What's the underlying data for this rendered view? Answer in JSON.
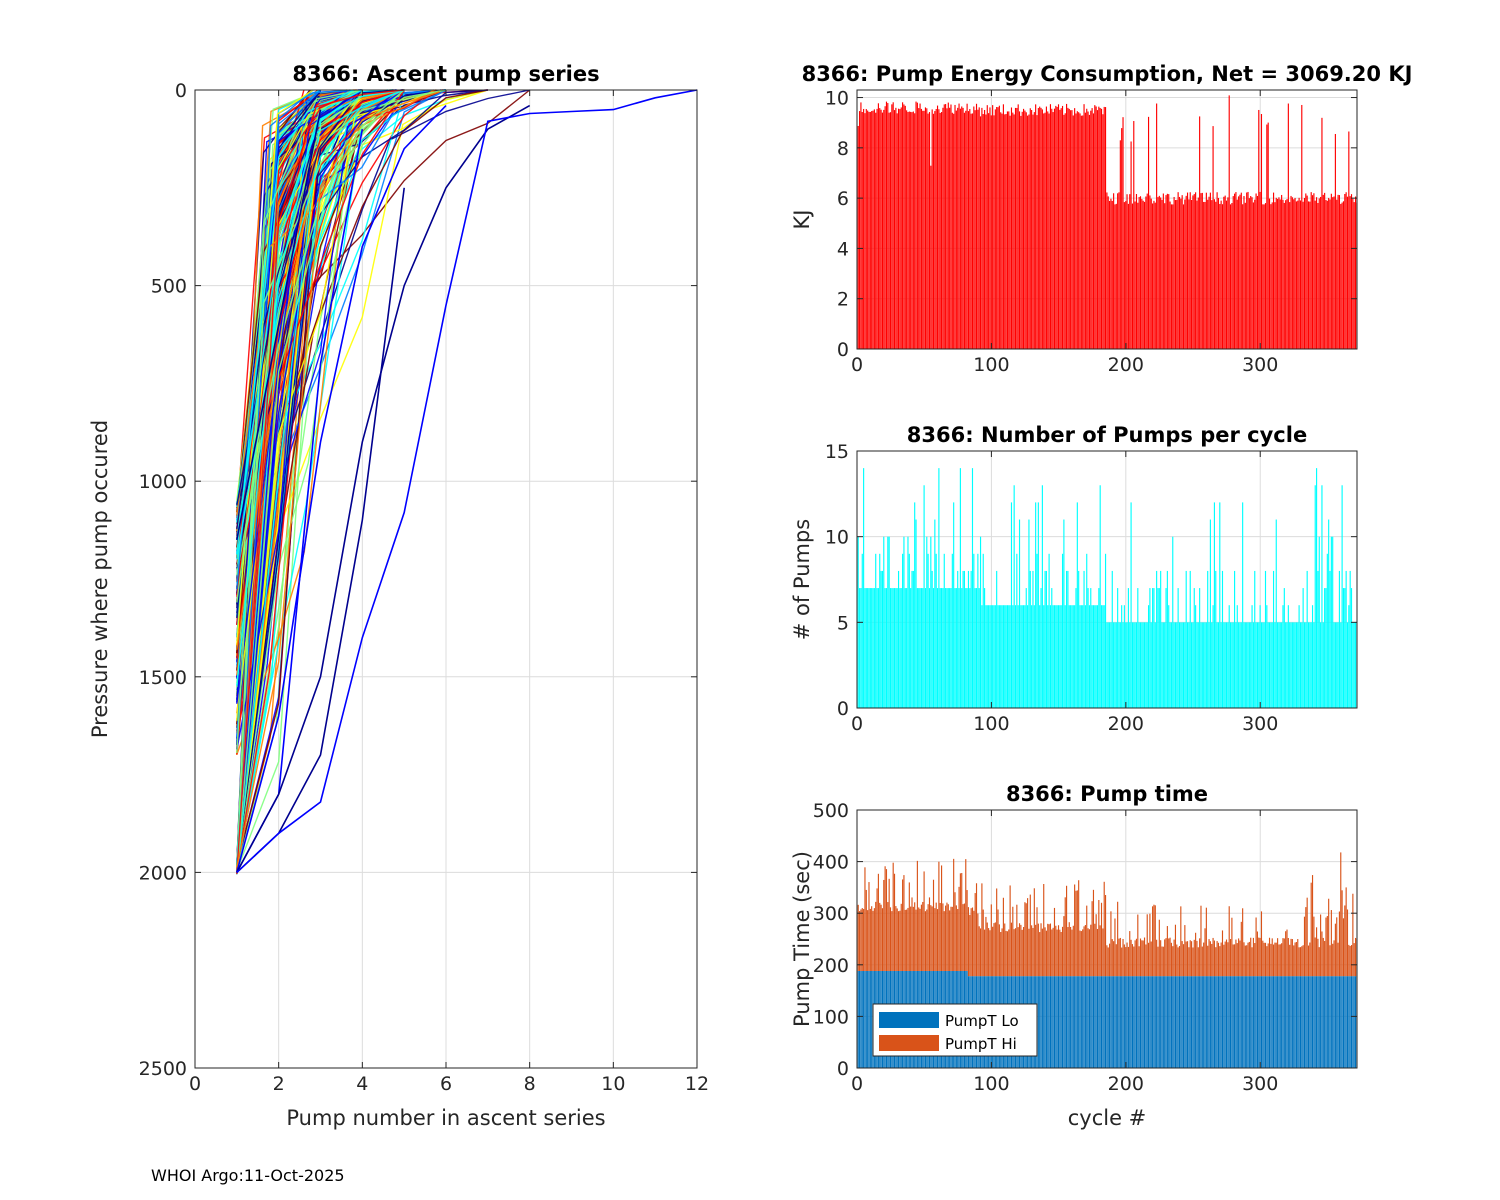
{
  "float_id": "8366",
  "footer": "WHOI Argo:11-Oct-2025",
  "chart_data": [
    {
      "type": "line",
      "title": "8366: Ascent pump series",
      "xlabel": "Pump number in ascent series",
      "ylabel": "Pressure where pump occured",
      "xlim": [
        0,
        12
      ],
      "ylim": [
        0,
        2500
      ],
      "y_reversed": true,
      "xticks": [
        0,
        2,
        4,
        6,
        8,
        10,
        12
      ],
      "yticks": [
        0,
        500,
        1000,
        1500,
        2000,
        2500
      ],
      "grid": true,
      "n_series_approx": 370,
      "colormap": "jet (cycle index)",
      "colors": [
        "#00008f",
        "#0000ff",
        "#0080ff",
        "#00ffff",
        "#80ff80",
        "#ffff00",
        "#ff8000",
        "#ff0000",
        "#800000"
      ],
      "representative_series": [
        {
          "name": "cycle group 1",
          "x": [
            1,
            2,
            3,
            4,
            5
          ],
          "y": [
            2000,
            1900,
            1700,
            1100,
            250
          ]
        },
        {
          "name": "cycle group 2",
          "x": [
            1,
            2,
            3,
            4
          ],
          "y": [
            2000,
            1800,
            700,
            100
          ]
        },
        {
          "name": "cycle group 3",
          "x": [
            1,
            2,
            3
          ],
          "y": [
            1150,
            600,
            50
          ]
        },
        {
          "name": "cycle group 4",
          "x": [
            1,
            2,
            3,
            4,
            5,
            6
          ],
          "y": [
            2000,
            1600,
            900,
            400,
            150,
            40
          ]
        },
        {
          "name": "cycle group 5",
          "x": [
            1,
            2,
            3,
            4,
            5,
            6,
            7,
            8
          ],
          "y": [
            2000,
            1800,
            1500,
            900,
            500,
            250,
            100,
            40
          ]
        },
        {
          "name": "cycle group 6",
          "x": [
            1,
            2,
            3,
            4,
            5,
            6,
            7,
            8,
            9,
            10,
            11,
            12
          ],
          "y": [
            2000,
            1900,
            1820,
            1400,
            1080,
            550,
            80,
            60,
            55,
            50,
            20,
            0
          ]
        }
      ]
    },
    {
      "type": "bar",
      "title": "8366: Pump Energy Consumption,  Net = 3069.20 KJ",
      "xlabel": "",
      "ylabel": "KJ",
      "xlim": [
        0,
        372
      ],
      "ylim": [
        0,
        10.3
      ],
      "xticks": [
        0,
        100,
        200,
        300
      ],
      "yticks": [
        0,
        2,
        4,
        6,
        8,
        10
      ],
      "color": "#ff0000",
      "grid": true,
      "segments": [
        {
          "from": 1,
          "to": 90,
          "value": 9.6
        },
        {
          "from": 91,
          "to": 185,
          "value": 9.5
        },
        {
          "from": 186,
          "to": 372,
          "value": 6.0
        }
      ],
      "net_kj": 3069.2
    },
    {
      "type": "bar",
      "title": "8366: Number of Pumps per cycle",
      "xlabel": "",
      "ylabel": "# of Pumps",
      "xlim": [
        0,
        372
      ],
      "ylim": [
        0,
        15
      ],
      "xticks": [
        0,
        100,
        200,
        300
      ],
      "yticks": [
        0,
        5,
        10,
        15
      ],
      "color": "#00ffff",
      "grid": true,
      "segments": [
        {
          "from": 1,
          "to": 90,
          "value": 7
        },
        {
          "from": 91,
          "to": 185,
          "value": 6
        },
        {
          "from": 186,
          "to": 372,
          "value": 5
        }
      ]
    },
    {
      "type": "bar",
      "title": "8366: Pump time",
      "xlabel": "cycle #",
      "ylabel": "Pump Time (sec)",
      "xlim": [
        0,
        372
      ],
      "ylim": [
        0,
        500
      ],
      "xticks": [
        0,
        100,
        200,
        300
      ],
      "yticks": [
        0,
        100,
        200,
        300,
        400,
        500
      ],
      "stacked": true,
      "grid": true,
      "legend": {
        "position": "bottom-left",
        "entries": [
          "PumpT Lo",
          "PumpT Hi"
        ]
      },
      "series": [
        {
          "name": "PumpT Lo",
          "color": "#0072bd",
          "segments": [
            {
              "from": 1,
              "to": 82,
              "value": 188
            },
            {
              "from": 83,
              "to": 372,
              "value": 178
            }
          ]
        },
        {
          "name": "PumpT Hi",
          "color": "#d95319",
          "segments": [
            {
              "from": 1,
              "to": 90,
              "value": 125
            },
            {
              "from": 91,
              "to": 185,
              "value": 95
            },
            {
              "from": 186,
              "to": 372,
              "value": 65
            }
          ]
        }
      ]
    }
  ]
}
